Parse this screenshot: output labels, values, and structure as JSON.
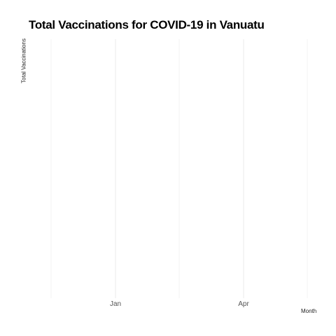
{
  "chart_data": {
    "type": "line",
    "title": "Total Vaccinations for COVID-19 in Vanuatu",
    "xlabel": "Month",
    "ylabel": "Total Vaccinations",
    "x_ticks": [
      "Jan",
      "Apr"
    ],
    "series": [],
    "grid": true,
    "legend": "none",
    "colors": {
      "grid": "#ebebeb",
      "tick_text": "#555555",
      "title": "#000000"
    }
  }
}
